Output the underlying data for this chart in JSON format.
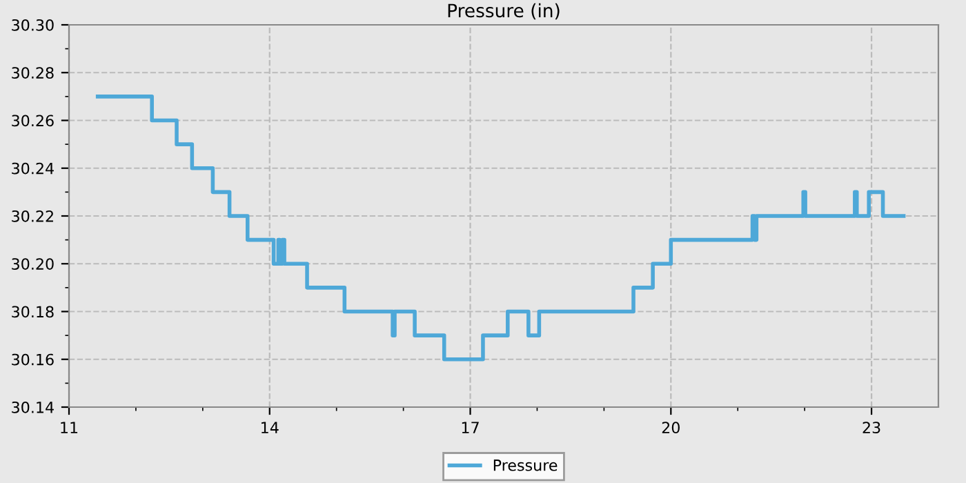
{
  "chart_data": {
    "type": "step",
    "title": "Pressure (in)",
    "x": [
      11.43,
      12.24,
      12.61,
      12.84,
      13.15,
      13.4,
      13.67,
      14.06,
      14.13,
      14.15,
      14.19,
      14.22,
      14.56,
      15.12,
      15.84,
      15.87,
      16.17,
      16.61,
      17.19,
      17.56,
      17.87,
      18.03,
      19.44,
      19.73,
      20.0,
      21.22,
      21.25,
      21.28,
      21.98,
      22.01,
      22.75,
      22.78,
      22.96,
      23.17,
      23.48
    ],
    "series": [
      {
        "name": "Pressure",
        "color": "#4ea8d8",
        "values": [
          30.27,
          30.26,
          30.25,
          30.24,
          30.23,
          30.22,
          30.21,
          30.2,
          30.21,
          30.2,
          30.21,
          30.2,
          30.19,
          30.18,
          30.17,
          30.18,
          30.17,
          30.16,
          30.17,
          30.18,
          30.17,
          30.18,
          30.19,
          30.2,
          30.21,
          30.22,
          30.21,
          30.22,
          30.23,
          30.22,
          30.23,
          30.22,
          30.23,
          30.22,
          30.22
        ]
      }
    ],
    "xlim": [
      11,
      24
    ],
    "xticks": [
      11,
      {
        "value": 12,
        "label": null
      },
      {
        "value": 13,
        "label": null
      },
      14,
      {
        "value": 15,
        "label": null
      },
      {
        "value": 16,
        "label": null
      },
      17,
      {
        "value": 18,
        "label": null
      },
      {
        "value": 19,
        "label": null
      },
      20,
      {
        "value": 21,
        "label": null
      },
      {
        "value": 22,
        "label": null
      },
      23
    ],
    "ylim": [
      30.14,
      30.3
    ],
    "yticks": [
      {
        "value": 30.14,
        "label": "30.14"
      },
      {
        "value": 30.15,
        "label": null
      },
      {
        "value": 30.16,
        "label": "30.16"
      },
      {
        "value": 30.17,
        "label": null
      },
      {
        "value": 30.18,
        "label": "30.18"
      },
      {
        "value": 30.19,
        "label": null
      },
      {
        "value": 30.2,
        "label": "30.20"
      },
      {
        "value": 30.21,
        "label": null
      },
      {
        "value": 30.22,
        "label": "30.22"
      },
      {
        "value": 30.23,
        "label": null
      },
      {
        "value": 30.24,
        "label": "30.24"
      },
      {
        "value": 30.25,
        "label": null
      },
      {
        "value": 30.26,
        "label": "30.26"
      },
      {
        "value": 30.27,
        "label": null
      },
      {
        "value": 30.28,
        "label": "30.28"
      },
      {
        "value": 30.29,
        "label": null
      },
      {
        "value": 30.3,
        "label": "30.30"
      }
    ],
    "grid": true,
    "legend": "bottom",
    "line_style": "solid",
    "marker": "none"
  }
}
